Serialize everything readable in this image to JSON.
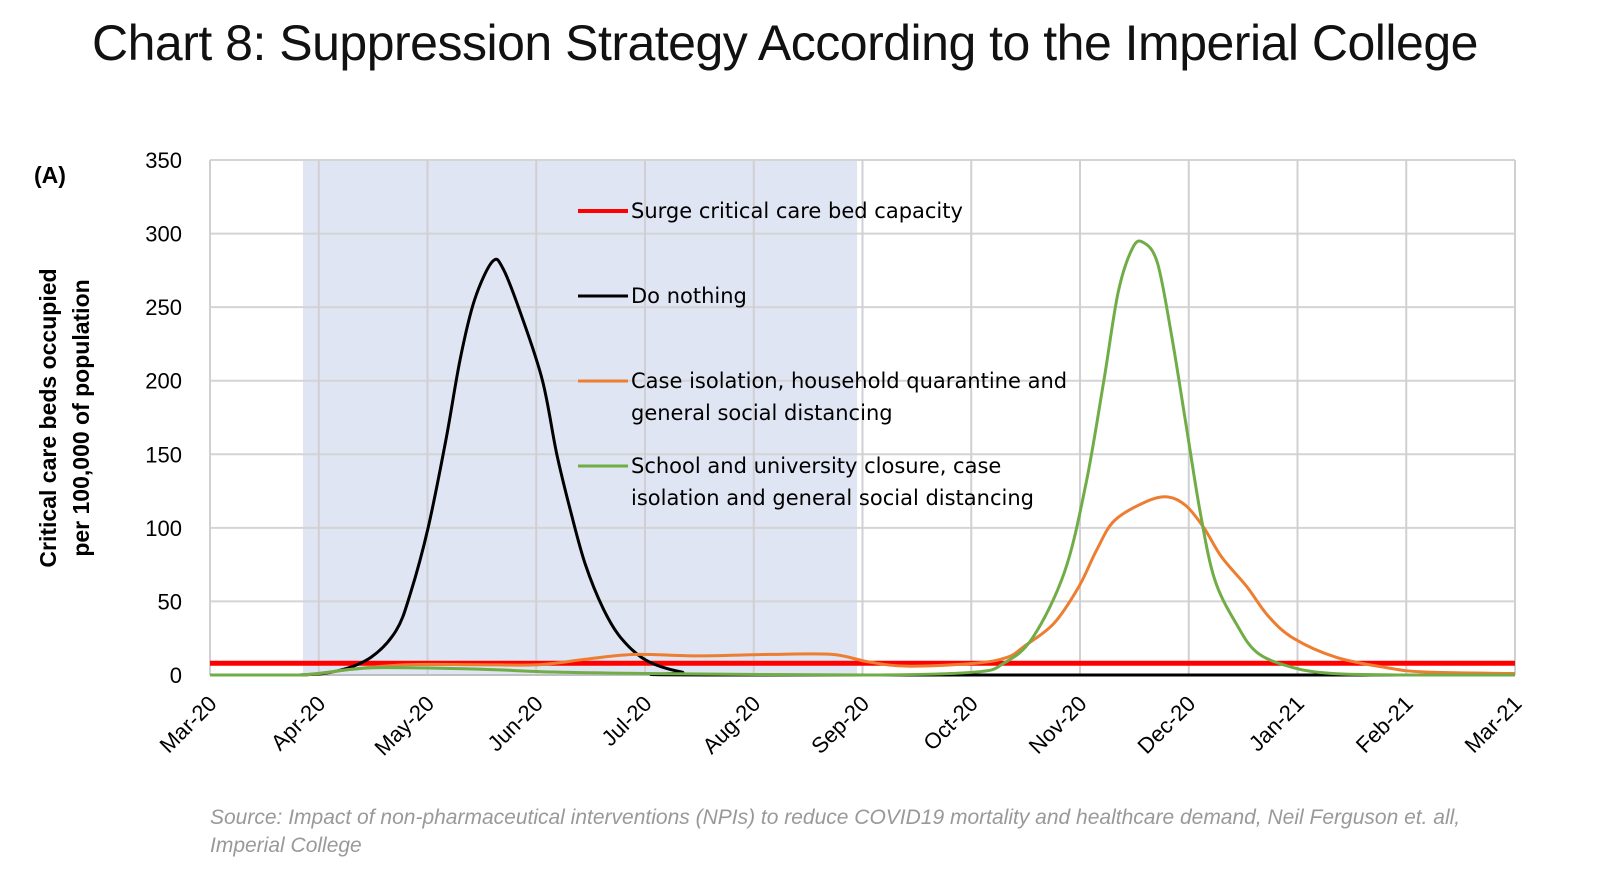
{
  "title": "Chart 8: Suppression Strategy According to the Imperial College",
  "source": "Source: Impact of non-pharmaceutical interventions (NPIs) to reduce COVID19 mortality and healthcare demand, Neil Ferguson et. all, Imperial College",
  "chart_data": {
    "type": "line",
    "panel_label": "(A)",
    "ylabel": [
      "Critical care beds occupied",
      "per 100,000 of population"
    ],
    "ylim": [
      0,
      350
    ],
    "yticks": [
      0,
      50,
      100,
      150,
      200,
      250,
      300,
      350
    ],
    "xlim": [
      "2020-03-01",
      "2021-03-01"
    ],
    "xticks": [
      "Mar-20",
      "Apr-20",
      "May-20",
      "Jun-20",
      "Jul-20",
      "Aug-20",
      "Sep-20",
      "Oct-20",
      "Nov-20",
      "Dec-20",
      "Jan-21",
      "Feb-21",
      "Mar-21"
    ],
    "grid": true,
    "shaded_period": {
      "start": "2020-03-27",
      "end": "2020-08-29",
      "color": "#dfe5f2"
    },
    "legend_placement": "inside-top-center",
    "series": [
      {
        "name": "Surge critical care bed capacity",
        "color": "#ff0000",
        "points": [
          [
            "2020-03-01",
            8
          ],
          [
            "2021-03-01",
            8
          ]
        ]
      },
      {
        "name": "Do nothing",
        "color": "#000000",
        "points": [
          [
            "2020-03-01",
            0
          ],
          [
            "2020-03-26",
            0
          ],
          [
            "2020-04-06",
            3
          ],
          [
            "2020-04-15",
            12
          ],
          [
            "2020-04-22",
            30
          ],
          [
            "2020-04-26",
            55
          ],
          [
            "2020-05-01",
            100
          ],
          [
            "2020-05-06",
            160
          ],
          [
            "2020-05-10",
            215
          ],
          [
            "2020-05-14",
            255
          ],
          [
            "2020-05-19",
            281
          ],
          [
            "2020-05-22",
            276
          ],
          [
            "2020-05-27",
            245
          ],
          [
            "2020-06-02",
            200
          ],
          [
            "2020-06-06",
            150
          ],
          [
            "2020-06-10",
            110
          ],
          [
            "2020-06-14",
            75
          ],
          [
            "2020-06-19",
            45
          ],
          [
            "2020-06-24",
            25
          ],
          [
            "2020-07-01",
            10
          ],
          [
            "2020-07-11",
            2
          ],
          [
            "2020-07-22",
            0
          ],
          [
            "2021-03-01",
            0
          ]
        ]
      },
      {
        "name": "Case isolation, household quarantine and general social distancing",
        "color": "#ed7d31",
        "points": [
          [
            "2020-03-01",
            0
          ],
          [
            "2020-03-26",
            0
          ],
          [
            "2020-04-10",
            4
          ],
          [
            "2020-04-25",
            7
          ],
          [
            "2020-05-15",
            7
          ],
          [
            "2020-06-01",
            7
          ],
          [
            "2020-06-15",
            11
          ],
          [
            "2020-06-28",
            14
          ],
          [
            "2020-07-15",
            13
          ],
          [
            "2020-08-05",
            14
          ],
          [
            "2020-08-22",
            14
          ],
          [
            "2020-09-01",
            9
          ],
          [
            "2020-09-12",
            6
          ],
          [
            "2020-10-01",
            8
          ],
          [
            "2020-10-10",
            12
          ],
          [
            "2020-10-15",
            20
          ],
          [
            "2020-10-23",
            35
          ],
          [
            "2020-10-30",
            60
          ],
          [
            "2020-11-04",
            85
          ],
          [
            "2020-11-09",
            105
          ],
          [
            "2020-11-18",
            118
          ],
          [
            "2020-11-24",
            121
          ],
          [
            "2020-11-29",
            115
          ],
          [
            "2020-12-04",
            100
          ],
          [
            "2020-12-09",
            80
          ],
          [
            "2020-12-16",
            60
          ],
          [
            "2020-12-22",
            40
          ],
          [
            "2020-12-29",
            25
          ],
          [
            "2021-01-10",
            12
          ],
          [
            "2021-01-24",
            5
          ],
          [
            "2021-02-04",
            2
          ],
          [
            "2021-03-01",
            1
          ]
        ]
      },
      {
        "name": "School and university closure, case isolation and general social distancing",
        "color": "#70ad47",
        "points": [
          [
            "2020-03-01",
            0
          ],
          [
            "2020-03-26",
            0
          ],
          [
            "2020-04-10",
            4
          ],
          [
            "2020-04-20",
            5
          ],
          [
            "2020-05-15",
            4
          ],
          [
            "2020-06-05",
            2
          ],
          [
            "2020-07-01",
            1
          ],
          [
            "2020-09-01",
            0
          ],
          [
            "2020-10-01",
            2
          ],
          [
            "2020-10-09",
            8
          ],
          [
            "2020-10-17",
            25
          ],
          [
            "2020-10-26",
            70
          ],
          [
            "2020-11-01",
            130
          ],
          [
            "2020-11-06",
            200
          ],
          [
            "2020-11-10",
            260
          ],
          [
            "2020-11-14",
            290
          ],
          [
            "2020-11-17",
            294
          ],
          [
            "2020-11-21",
            280
          ],
          [
            "2020-11-25",
            230
          ],
          [
            "2020-11-29",
            170
          ],
          [
            "2020-12-03",
            110
          ],
          [
            "2020-12-07",
            65
          ],
          [
            "2020-12-13",
            35
          ],
          [
            "2020-12-19",
            15
          ],
          [
            "2020-12-29",
            5
          ],
          [
            "2021-01-09",
            1
          ],
          [
            "2021-01-28",
            0
          ],
          [
            "2021-03-01",
            0
          ]
        ]
      }
    ]
  }
}
